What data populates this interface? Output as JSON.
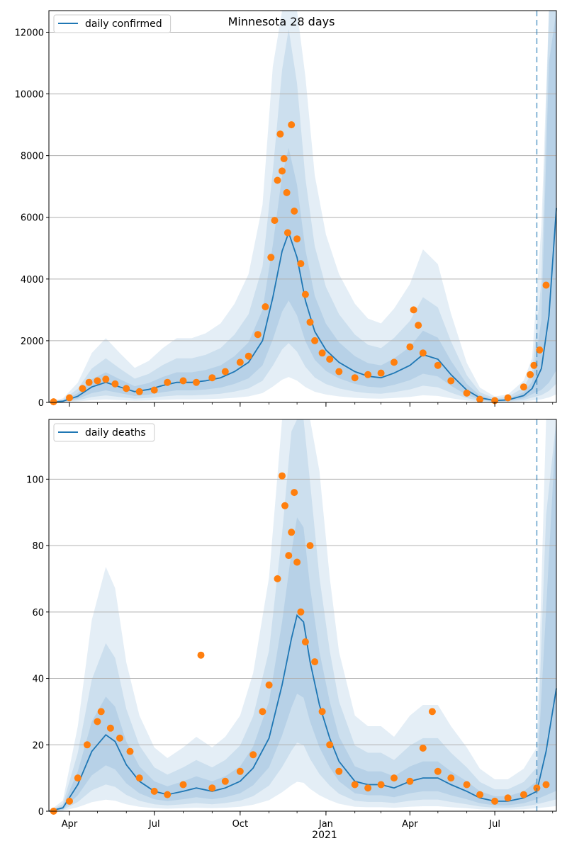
{
  "figure_title": "Minnesota 28 days",
  "colors": {
    "model": "#1f77b4",
    "observed": "#ff7f0e",
    "grid": "#b0b0b0"
  },
  "x_axis": {
    "ticks": [
      "Apr",
      "Jul",
      "Oct",
      "Jan",
      "Apr",
      "Jul"
    ],
    "year_label": "2021"
  },
  "chart_data": [
    {
      "type": "line",
      "xlabel": "",
      "ylabel": "",
      "ylim": [
        0,
        12700
      ],
      "xlim": [
        "2020-03-10",
        "2021-09-05"
      ],
      "grid": "horizontal",
      "legend": {
        "position": "top-left",
        "label": "daily confirmed"
      },
      "yticks": [
        "0",
        "2000",
        "4000",
        "6000",
        "8000",
        "10000",
        "12000"
      ],
      "forecast_start": "2021-08-15",
      "series": [
        {
          "name": "daily confirmed",
          "kind": "model",
          "x": [
            "2020-03-10",
            "2020-03-25",
            "2020-04-10",
            "2020-04-25",
            "2020-05-10",
            "2020-05-25",
            "2020-06-10",
            "2020-06-25",
            "2020-07-10",
            "2020-07-25",
            "2020-08-10",
            "2020-08-25",
            "2020-09-10",
            "2020-09-25",
            "2020-10-10",
            "2020-10-25",
            "2020-11-05",
            "2020-11-15",
            "2020-11-22",
            "2020-12-01",
            "2020-12-10",
            "2020-12-20",
            "2021-01-01",
            "2021-01-15",
            "2021-02-01",
            "2021-02-15",
            "2021-03-01",
            "2021-03-15",
            "2021-04-01",
            "2021-04-15",
            "2021-05-01",
            "2021-05-15",
            "2021-06-01",
            "2021-06-15",
            "2021-07-01",
            "2021-07-15",
            "2021-08-01",
            "2021-08-10",
            "2021-08-20",
            "2021-08-28",
            "2021-09-05"
          ],
          "y": [
            10,
            40,
            200,
            500,
            650,
            500,
            350,
            420,
            550,
            650,
            650,
            700,
            800,
            1000,
            1300,
            2000,
            3400,
            4900,
            5500,
            4700,
            3300,
            2300,
            1700,
            1300,
            1000,
            850,
            800,
            950,
            1200,
            1550,
            1400,
            900,
            400,
            150,
            60,
            80,
            220,
            450,
            1100,
            2800,
            6300
          ]
        },
        {
          "name": "observed",
          "kind": "points",
          "x": [
            "2020-03-15",
            "2020-04-01",
            "2020-04-15",
            "2020-04-22",
            "2020-05-01",
            "2020-05-10",
            "2020-05-20",
            "2020-06-01",
            "2020-06-15",
            "2020-07-01",
            "2020-07-15",
            "2020-08-01",
            "2020-08-15",
            "2020-09-01",
            "2020-09-15",
            "2020-10-01",
            "2020-10-10",
            "2020-10-20",
            "2020-10-28",
            "2020-11-03",
            "2020-11-07",
            "2020-11-10",
            "2020-11-13",
            "2020-11-15",
            "2020-11-17",
            "2020-11-20",
            "2020-11-21",
            "2020-11-25",
            "2020-11-28",
            "2020-12-01",
            "2020-12-05",
            "2020-12-10",
            "2020-12-15",
            "2020-12-20",
            "2020-12-28",
            "2021-01-05",
            "2021-01-15",
            "2021-02-01",
            "2021-02-15",
            "2021-03-01",
            "2021-03-15",
            "2021-04-01",
            "2021-04-05",
            "2021-04-10",
            "2021-04-15",
            "2021-05-01",
            "2021-05-15",
            "2021-06-01",
            "2021-06-15",
            "2021-07-01",
            "2021-07-15",
            "2021-08-01",
            "2021-08-08",
            "2021-08-12",
            "2021-08-18",
            "2021-08-25"
          ],
          "y": [
            20,
            150,
            450,
            650,
            700,
            750,
            600,
            450,
            350,
            400,
            650,
            700,
            650,
            800,
            1000,
            1300,
            1500,
            2200,
            3100,
            4700,
            5900,
            7200,
            8700,
            7500,
            7900,
            6800,
            5500,
            9000,
            6200,
            5300,
            4500,
            3500,
            2600,
            2000,
            1600,
            1400,
            1000,
            800,
            900,
            950,
            1300,
            1800,
            3000,
            2500,
            1600,
            1200,
            700,
            300,
            100,
            60,
            150,
            500,
            900,
            1200,
            1700,
            3800
          ]
        }
      ]
    },
    {
      "type": "line",
      "xlabel": "",
      "ylabel": "",
      "ylim": [
        0,
        118
      ],
      "xlim": [
        "2020-03-10",
        "2021-09-05"
      ],
      "grid": "horizontal",
      "legend": {
        "position": "top-left",
        "label": "daily deaths"
      },
      "yticks": [
        "0",
        "20",
        "40",
        "60",
        "80",
        "100"
      ],
      "forecast_start": "2021-08-15",
      "series": [
        {
          "name": "daily deaths",
          "kind": "model",
          "x": [
            "2020-03-10",
            "2020-03-25",
            "2020-04-10",
            "2020-04-25",
            "2020-05-10",
            "2020-05-20",
            "2020-06-01",
            "2020-06-15",
            "2020-07-01",
            "2020-07-15",
            "2020-08-01",
            "2020-08-15",
            "2020-09-01",
            "2020-09-15",
            "2020-10-01",
            "2020-10-15",
            "2020-11-01",
            "2020-11-15",
            "2020-11-25",
            "2020-12-01",
            "2020-12-08",
            "2020-12-15",
            "2020-12-25",
            "2021-01-05",
            "2021-01-15",
            "2021-02-01",
            "2021-02-15",
            "2021-03-01",
            "2021-03-15",
            "2021-04-01",
            "2021-04-15",
            "2021-05-01",
            "2021-05-15",
            "2021-06-01",
            "2021-06-15",
            "2021-07-01",
            "2021-07-15",
            "2021-08-01",
            "2021-08-15",
            "2021-08-25",
            "2021-09-05"
          ],
          "y": [
            0,
            1,
            8,
            18,
            23,
            21,
            14,
            9,
            6,
            5,
            6,
            7,
            6,
            7,
            9,
            13,
            22,
            38,
            52,
            59,
            57,
            45,
            32,
            22,
            15,
            9,
            8,
            8,
            7,
            9,
            10,
            10,
            8,
            6,
            4,
            3,
            3,
            4,
            6,
            18,
            37
          ]
        },
        {
          "name": "observed",
          "kind": "points",
          "x": [
            "2020-03-15",
            "2020-04-01",
            "2020-04-10",
            "2020-04-20",
            "2020-05-01",
            "2020-05-05",
            "2020-05-15",
            "2020-05-25",
            "2020-06-05",
            "2020-06-15",
            "2020-07-01",
            "2020-07-15",
            "2020-08-01",
            "2020-08-20",
            "2020-09-01",
            "2020-09-15",
            "2020-10-01",
            "2020-10-15",
            "2020-10-25",
            "2020-11-01",
            "2020-11-10",
            "2020-11-15",
            "2020-11-18",
            "2020-11-22",
            "2020-11-25",
            "2020-11-28",
            "2020-12-01",
            "2020-12-05",
            "2020-12-10",
            "2020-12-15",
            "2020-12-20",
            "2020-12-28",
            "2021-01-05",
            "2021-01-15",
            "2021-02-01",
            "2021-02-15",
            "2021-03-01",
            "2021-03-15",
            "2021-04-01",
            "2021-04-15",
            "2021-04-25",
            "2021-05-01",
            "2021-05-15",
            "2021-06-01",
            "2021-06-15",
            "2021-07-01",
            "2021-07-15",
            "2021-08-01",
            "2021-08-15",
            "2021-08-25"
          ],
          "y": [
            0,
            3,
            10,
            20,
            27,
            30,
            25,
            22,
            18,
            10,
            6,
            5,
            8,
            47,
            7,
            9,
            12,
            17,
            30,
            38,
            70,
            101,
            92,
            77,
            84,
            96,
            75,
            60,
            51,
            80,
            45,
            30,
            20,
            12,
            8,
            7,
            8,
            10,
            9,
            19,
            30,
            12,
            10,
            8,
            5,
            3,
            4,
            5,
            7,
            8
          ]
        }
      ]
    }
  ]
}
